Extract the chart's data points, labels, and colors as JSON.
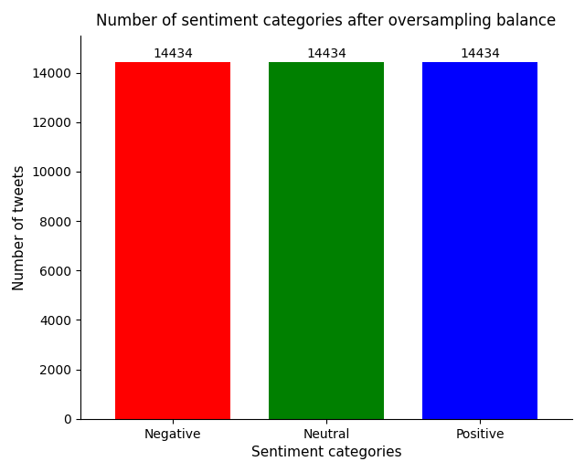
{
  "categories": [
    "Negative",
    "Neutral",
    "Positive"
  ],
  "values": [
    14434,
    14434,
    14434
  ],
  "bar_colors": [
    "#ff0000",
    "#008000",
    "#0000ff"
  ],
  "title": "Number of sentiment categories after oversampling balance",
  "xlabel": "Sentiment categories",
  "ylabel": "Number of tweets",
  "ylim": [
    0,
    15500
  ],
  "yticks": [
    0,
    2000,
    4000,
    6000,
    8000,
    10000,
    12000,
    14000
  ],
  "title_fontsize": 12,
  "label_fontsize": 11,
  "tick_fontsize": 10,
  "annotation_fontsize": 10,
  "bar_width": 0.75,
  "background_color": "#ffffff"
}
